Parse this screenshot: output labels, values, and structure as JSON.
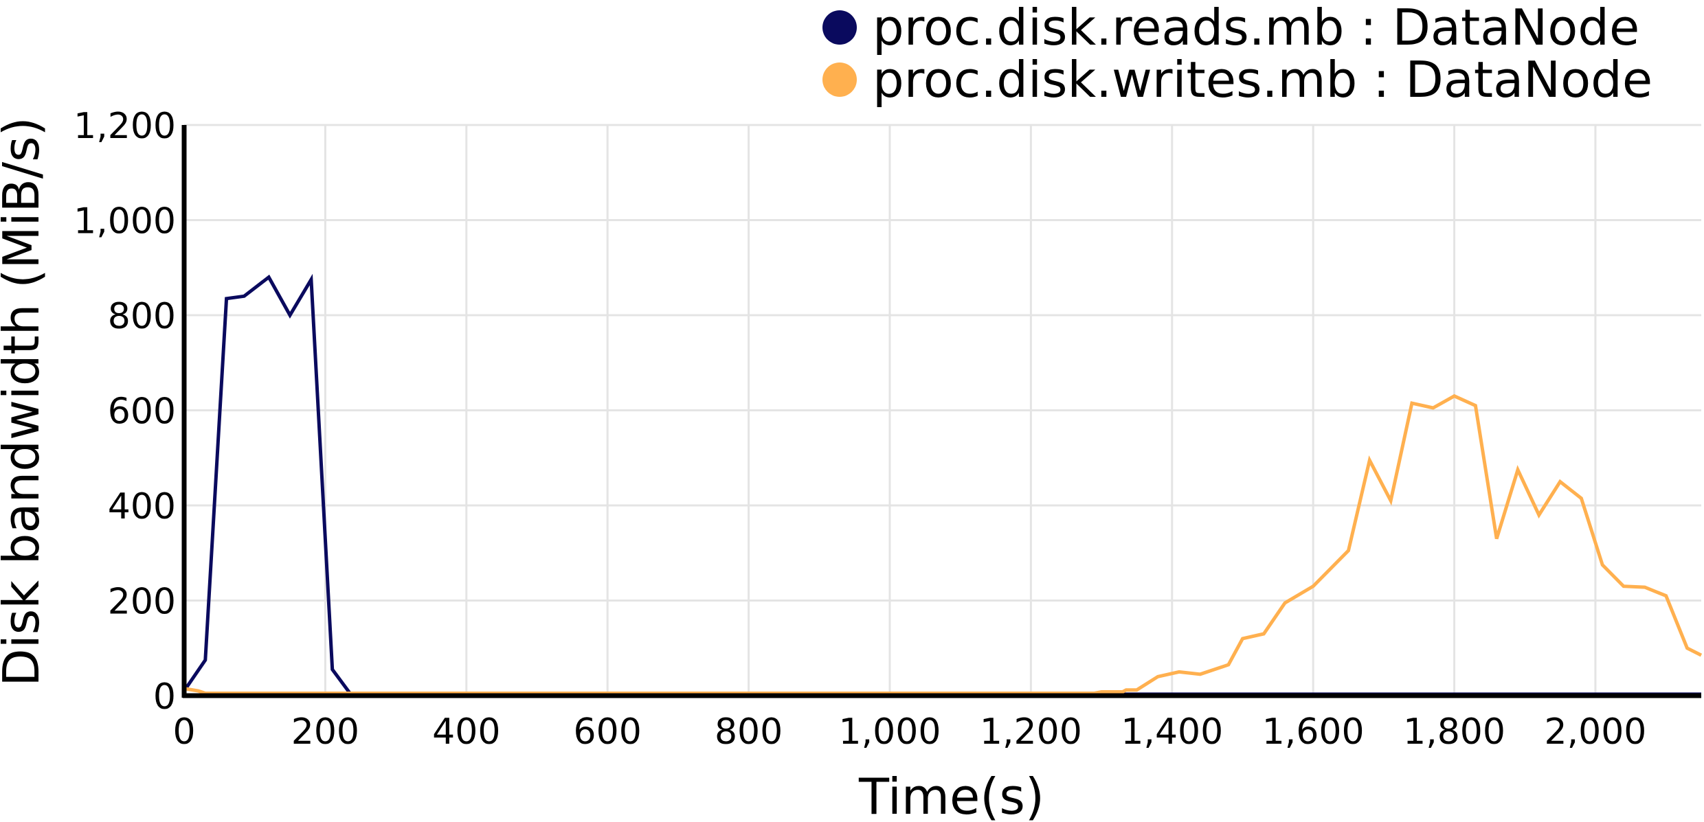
{
  "chart_data": {
    "type": "line",
    "title": "",
    "xlabel": "Time(s)",
    "ylabel": "Disk bandwidth (MiB/s)",
    "xlim": [
      0,
      2150
    ],
    "ylim": [
      0,
      1200
    ],
    "xticks": [
      0,
      200,
      400,
      600,
      800,
      1000,
      1200,
      1400,
      1600,
      1800,
      2000
    ],
    "xtick_labels": [
      "0",
      "200",
      "400",
      "600",
      "800",
      "1,000",
      "1,200",
      "1,400",
      "1,600",
      "1,800",
      "2,000"
    ],
    "yticks": [
      0,
      200,
      400,
      600,
      800,
      1000,
      1200
    ],
    "ytick_labels": [
      "0",
      "200",
      "400",
      "600",
      "800",
      "1,000",
      "1,200"
    ],
    "grid": true,
    "legend_position": "top-right",
    "series": [
      {
        "name": "proc.disk.reads.mb : DataNode",
        "color": "#0a0a5e",
        "x": [
          0,
          30,
          60,
          85,
          120,
          150,
          180,
          210,
          235,
          260,
          300,
          400,
          600,
          800,
          1000,
          1200,
          1400,
          1600,
          1800,
          2000,
          2150
        ],
        "y": [
          10,
          75,
          835,
          840,
          880,
          800,
          875,
          55,
          5,
          3,
          3,
          3,
          3,
          3,
          3,
          3,
          3,
          3,
          3,
          3,
          3
        ]
      },
      {
        "name": "proc.disk.writes.mb : DataNode",
        "color": "#ffb04f",
        "x": [
          0,
          20,
          30,
          100,
          400,
          800,
          1200,
          1290,
          1300,
          1330,
          1335,
          1350,
          1380,
          1410,
          1440,
          1460,
          1480,
          1500,
          1530,
          1560,
          1600,
          1650,
          1680,
          1710,
          1740,
          1770,
          1800,
          1830,
          1860,
          1890,
          1920,
          1950,
          1980,
          2010,
          2040,
          2070,
          2100,
          2130,
          2150
        ],
        "y": [
          15,
          10,
          5,
          5,
          5,
          5,
          5,
          5,
          8,
          8,
          12,
          12,
          40,
          50,
          45,
          55,
          65,
          120,
          130,
          195,
          230,
          305,
          495,
          410,
          615,
          605,
          630,
          610,
          330,
          475,
          380,
          450,
          415,
          275,
          230,
          228,
          210,
          100,
          85
        ]
      }
    ]
  }
}
